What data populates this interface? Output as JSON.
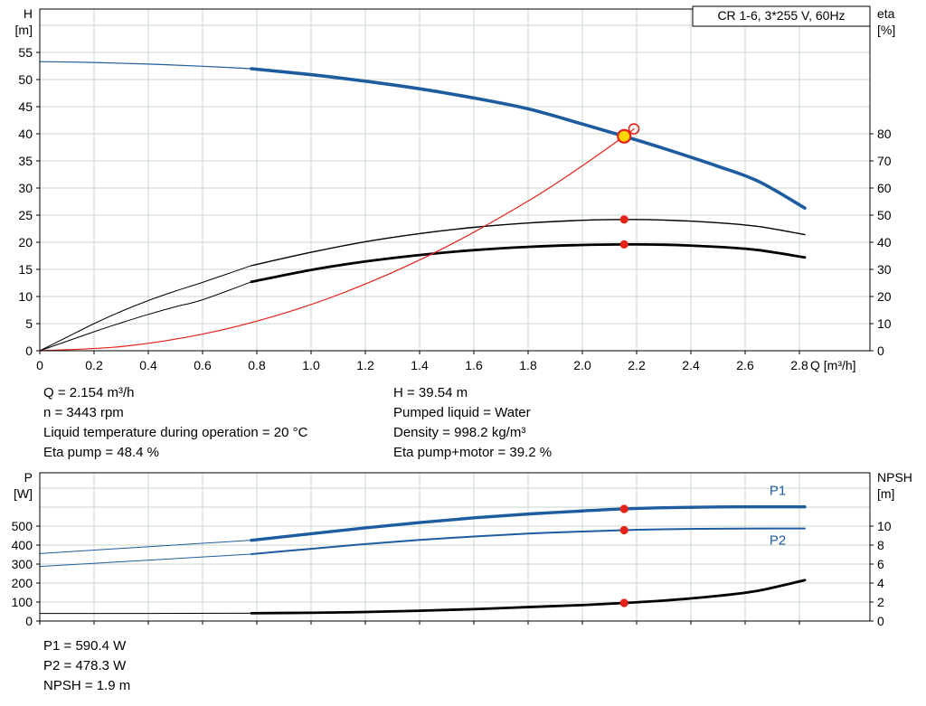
{
  "colors": {
    "curve_blue": "#1d5c9e",
    "curve_black": "#000000",
    "curve_red": "#e5231b",
    "marker_red": "#e5231b",
    "duty_fill": "#ffd500",
    "grid": "#c9d6c9",
    "axis": "#000000",
    "background": "#ffffff"
  },
  "annotations_top": {
    "left": [
      "Q = 2.154 m³/h",
      "n = 3443 rpm",
      "Liquid temperature during operation = 20 °C",
      "Eta pump = 48.4 %"
    ],
    "right": [
      "H = 39.54 m",
      "Pumped liquid = Water",
      "Density = 998.2 kg/m³",
      "Eta pump+motor = 39.2 %"
    ]
  },
  "annotations_bottom": [
    "P1 = 590.4 W",
    "P2 = 478.3 W",
    "NPSH = 1.9 m"
  ],
  "chart_data": [
    {
      "id": "qh-chart",
      "type": "line",
      "title": "CR 1-6, 3*255 V, 60Hz",
      "x": {
        "label": "Q [m³/h]",
        "min": 0,
        "max": 3.06,
        "ticks": [
          0,
          0.2,
          0.4,
          0.6,
          0.8,
          1.0,
          1.2,
          1.4,
          1.6,
          1.8,
          2.0,
          2.2,
          2.4,
          2.6,
          2.8
        ],
        "tick_labels": [
          "0",
          "0.2",
          "0.4",
          "0.6",
          "0.8",
          "1.0",
          "1.2",
          "1.4",
          "1.6",
          "1.8",
          "2.0",
          "2.2",
          "2.4",
          "2.6",
          "2.8"
        ]
      },
      "y_left": {
        "name": "H",
        "unit": "[m]",
        "min": 0,
        "max": 63,
        "ticks": [
          0,
          5,
          10,
          15,
          20,
          25,
          30,
          35,
          40,
          45,
          50,
          55
        ],
        "extra_grid": [
          60
        ]
      },
      "y_right": {
        "name": "eta",
        "unit": "[%]",
        "min": 0,
        "max": 126,
        "ticks": [
          0,
          10,
          20,
          30,
          40,
          50,
          60,
          70,
          80
        ]
      },
      "series": [
        {
          "name": "eta-pump",
          "axis": "right",
          "color": "#000000",
          "thin_width": 1,
          "width": 1.4,
          "thin_points": [
            [
              0,
              0
            ],
            [
              0.1,
              5
            ],
            [
              0.2,
              10
            ],
            [
              0.3,
              14.5
            ],
            [
              0.4,
              18.5
            ],
            [
              0.5,
              22
            ],
            [
              0.6,
              25.2
            ],
            [
              0.78,
              31.4
            ]
          ],
          "points": [
            [
              0.78,
              31.4
            ],
            [
              1.0,
              36.3
            ],
            [
              1.2,
              40.2
            ],
            [
              1.4,
              43.2
            ],
            [
              1.6,
              45.5
            ],
            [
              1.8,
              47.1
            ],
            [
              2.0,
              48.1
            ],
            [
              2.154,
              48.4
            ],
            [
              2.3,
              48.2
            ],
            [
              2.5,
              47.2
            ],
            [
              2.65,
              45.8
            ],
            [
              2.82,
              42.8
            ]
          ]
        },
        {
          "name": "eta-pump-motor",
          "axis": "right",
          "color": "#000000",
          "thin_width": 1,
          "width": 2.8,
          "thin_points": [
            [
              0,
              0
            ],
            [
              0.1,
              3.5
            ],
            [
              0.2,
              7
            ],
            [
              0.3,
              10.3
            ],
            [
              0.4,
              13.4
            ],
            [
              0.5,
              16.2
            ],
            [
              0.6,
              18.8
            ],
            [
              0.78,
              25.4
            ]
          ],
          "points": [
            [
              0.78,
              25.4
            ],
            [
              1.0,
              29.8
            ],
            [
              1.2,
              32.9
            ],
            [
              1.4,
              35.3
            ],
            [
              1.6,
              37.1
            ],
            [
              1.8,
              38.3
            ],
            [
              2.0,
              39.0
            ],
            [
              2.154,
              39.2
            ],
            [
              2.3,
              39.1
            ],
            [
              2.5,
              38.3
            ],
            [
              2.65,
              37.1
            ],
            [
              2.82,
              34.4
            ]
          ]
        },
        {
          "name": "head",
          "axis": "left",
          "color": "#1d5c9e",
          "thin_width": 1.2,
          "width": 3.6,
          "thin_points": [
            [
              0,
              53.3
            ],
            [
              0.2,
              53.15
            ],
            [
              0.4,
              52.85
            ],
            [
              0.6,
              52.45
            ],
            [
              0.78,
              52.0
            ]
          ],
          "points": [
            [
              0.78,
              52.0
            ],
            [
              1.0,
              50.9
            ],
            [
              1.2,
              49.7
            ],
            [
              1.4,
              48.3
            ],
            [
              1.6,
              46.6
            ],
            [
              1.8,
              44.6
            ],
            [
              2.0,
              41.8
            ],
            [
              2.154,
              39.54
            ],
            [
              2.3,
              37.3
            ],
            [
              2.5,
              34.0
            ],
            [
              2.65,
              31.2
            ],
            [
              2.82,
              26.3
            ]
          ]
        },
        {
          "name": "system-curve",
          "axis": "left",
          "color": "#e5231b",
          "width": 1.2,
          "points": [
            [
              0,
              0
            ],
            [
              0.3,
              0.77
            ],
            [
              0.6,
              3.07
            ],
            [
              0.9,
              6.9
            ],
            [
              1.2,
              12.3
            ],
            [
              1.5,
              19.2
            ],
            [
              1.8,
              27.6
            ],
            [
              2.0,
              34.1
            ],
            [
              2.154,
              39.54
            ],
            [
              2.19,
              40.9
            ]
          ]
        }
      ],
      "markers": [
        {
          "name": "preview-point",
          "x": 2.19,
          "y": 40.9,
          "axis": "left",
          "r": 5.5,
          "fill": "none",
          "stroke": "#e5231b",
          "stroke_width": 1.6,
          "interactable": false
        },
        {
          "name": "eta-pump-point",
          "x": 2.154,
          "y": 48.4,
          "axis": "right",
          "r": 4.6,
          "fill": "#e5231b",
          "interactable": false
        },
        {
          "name": "eta-pump-motor-point",
          "x": 2.154,
          "y": 39.2,
          "axis": "right",
          "r": 4.6,
          "fill": "#e5231b",
          "interactable": false
        },
        {
          "name": "duty-point",
          "x": 2.154,
          "y": 39.54,
          "axis": "left",
          "r": 7,
          "fill": "#ffd500",
          "stroke": "#e5231b",
          "stroke_width": 2.2,
          "interactable": true
        }
      ]
    },
    {
      "id": "power-chart",
      "type": "line",
      "x": {
        "min": 0,
        "max": 3.06,
        "ticks": [
          0,
          0.2,
          0.4,
          0.6,
          0.8,
          1.0,
          1.2,
          1.4,
          1.6,
          1.8,
          2.0,
          2.2,
          2.4,
          2.6,
          2.8
        ]
      },
      "y_left": {
        "name": "P",
        "unit": "[W]",
        "min": 0,
        "max": 780,
        "ticks": [
          0,
          100,
          200,
          300,
          400,
          500
        ],
        "extra_grid": [
          600,
          700
        ]
      },
      "y_right": {
        "name": "NPSH",
        "unit": "[m]",
        "min": 0,
        "max": 15.6,
        "ticks": [
          0,
          2,
          4,
          6,
          8,
          10
        ]
      },
      "series": [
        {
          "name": "P1",
          "axis": "left",
          "color": "#1d5c9e",
          "thin_width": 1,
          "width": 3.4,
          "thin_points": [
            [
              0,
              355
            ],
            [
              0.3,
              382
            ],
            [
              0.6,
              409
            ],
            [
              0.78,
              425
            ]
          ],
          "points": [
            [
              0.78,
              425
            ],
            [
              1.0,
              459
            ],
            [
              1.2,
              490
            ],
            [
              1.4,
              518
            ],
            [
              1.6,
              543
            ],
            [
              1.8,
              563
            ],
            [
              2.0,
              579
            ],
            [
              2.154,
              590
            ],
            [
              2.3,
              596
            ],
            [
              2.5,
              600
            ],
            [
              2.7,
              601
            ],
            [
              2.82,
              601
            ]
          ],
          "label": "P1",
          "label_x": 2.72,
          "label_v": 601,
          "label_dy": -13
        },
        {
          "name": "P2",
          "axis": "left",
          "color": "#1d5c9e",
          "thin_width": 1,
          "width": 2,
          "thin_points": [
            [
              0,
              287
            ],
            [
              0.3,
              312
            ],
            [
              0.6,
              337
            ],
            [
              0.78,
              352
            ]
          ],
          "points": [
            [
              0.78,
              352
            ],
            [
              1.0,
              380
            ],
            [
              1.2,
              405
            ],
            [
              1.4,
              427
            ],
            [
              1.6,
              445
            ],
            [
              1.8,
              460
            ],
            [
              2.0,
              471
            ],
            [
              2.154,
              478
            ],
            [
              2.3,
              483
            ],
            [
              2.5,
              486
            ],
            [
              2.7,
              487
            ],
            [
              2.82,
              487
            ]
          ],
          "label": "P2",
          "label_x": 2.72,
          "label_v": 487,
          "label_dy": 18
        },
        {
          "name": "NPSH",
          "axis": "right",
          "color": "#000000",
          "thin_width": 1,
          "width": 2.8,
          "thin_points": [
            [
              0,
              0.8
            ],
            [
              0.4,
              0.8
            ],
            [
              0.78,
              0.82
            ]
          ],
          "points": [
            [
              0.78,
              0.82
            ],
            [
              1.0,
              0.87
            ],
            [
              1.2,
              0.95
            ],
            [
              1.4,
              1.08
            ],
            [
              1.6,
              1.25
            ],
            [
              1.8,
              1.47
            ],
            [
              2.0,
              1.68
            ],
            [
              2.154,
              1.9
            ],
            [
              2.3,
              2.15
            ],
            [
              2.5,
              2.65
            ],
            [
              2.65,
              3.2
            ],
            [
              2.82,
              4.3
            ]
          ]
        }
      ],
      "markers": [
        {
          "name": "p1-point",
          "x": 2.154,
          "y": 590,
          "axis": "left",
          "r": 4.6,
          "fill": "#e5231b",
          "interactable": false
        },
        {
          "name": "p2-point",
          "x": 2.154,
          "y": 478,
          "axis": "left",
          "r": 4.6,
          "fill": "#e5231b",
          "interactable": false
        },
        {
          "name": "npsh-point",
          "x": 2.154,
          "y": 1.9,
          "axis": "right",
          "r": 4.6,
          "fill": "#e5231b",
          "interactable": false
        }
      ]
    }
  ]
}
